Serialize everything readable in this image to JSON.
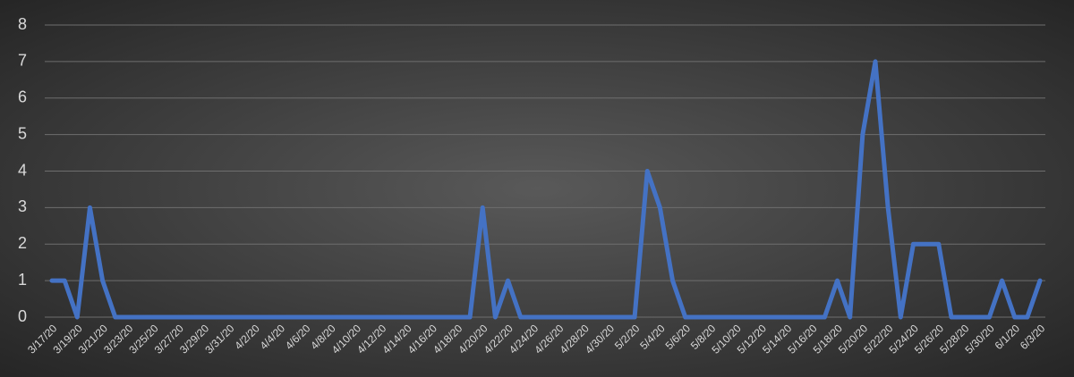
{
  "chart_data": {
    "type": "line",
    "categories": [
      "3/17/20",
      null,
      "3/19/20",
      null,
      "3/21/20",
      null,
      "3/23/20",
      null,
      "3/25/20",
      null,
      "3/27/20",
      null,
      "3/29/20",
      null,
      "3/31/20",
      null,
      "4/2/20",
      null,
      "4/4/20",
      null,
      "4/6/20",
      null,
      "4/8/20",
      null,
      "4/10/20",
      null,
      "4/12/20",
      null,
      "4/14/20",
      null,
      "4/16/20",
      null,
      "4/18/20",
      null,
      "4/20/20",
      null,
      "4/22/20",
      null,
      "4/24/20",
      null,
      "4/26/20",
      null,
      "4/28/20",
      null,
      "4/30/20",
      null,
      "5/2/20",
      null,
      "5/4/20",
      null,
      "5/6/20",
      null,
      "5/8/20",
      null,
      "5/10/20",
      null,
      "5/12/20",
      null,
      "5/14/20",
      null,
      "5/16/20",
      null,
      "5/18/20",
      null,
      "5/20/20",
      null,
      "5/22/20",
      null,
      "5/24/20",
      null,
      "5/26/20",
      null,
      "5/28/20",
      null,
      "5/30/20",
      null,
      "6/1/20",
      null,
      "6/3/20"
    ],
    "values": [
      1,
      1,
      0,
      3,
      1,
      0,
      0,
      0,
      0,
      0,
      0,
      0,
      0,
      0,
      0,
      0,
      0,
      0,
      0,
      0,
      0,
      0,
      0,
      0,
      0,
      0,
      0,
      0,
      0,
      0,
      0,
      0,
      0,
      0,
      3,
      0,
      1,
      0,
      0,
      0,
      0,
      0,
      0,
      0,
      0,
      0,
      0,
      4,
      3,
      1,
      0,
      0,
      0,
      0,
      0,
      0,
      0,
      0,
      0,
      0,
      0,
      0,
      1,
      0,
      5,
      7,
      3,
      0,
      2,
      2,
      2,
      0,
      0,
      0,
      0,
      1,
      0,
      0,
      1
    ],
    "color": "#4472c4",
    "ylim": [
      0,
      8
    ],
    "yticks": [
      0,
      1,
      2,
      3,
      4,
      5,
      6,
      7,
      8
    ],
    "grid": true
  }
}
